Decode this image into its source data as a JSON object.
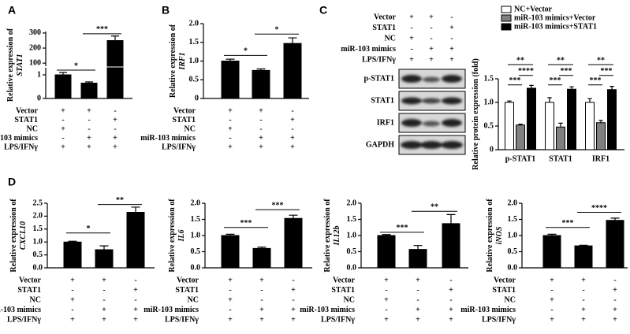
{
  "chart_data": [
    {
      "type": "bar",
      "panel": "A",
      "ylabel": "Relative expression of",
      "gene": "STAT1",
      "color": "#000000",
      "values": [
        1.0,
        0.65,
        250
      ],
      "errors": [
        0.1,
        0.05,
        30
      ],
      "segments": [
        {
          "ylim": [
            0,
            1.3
          ],
          "yticks": [
            0,
            1
          ]
        },
        {
          "ylim": [
            80,
            310
          ],
          "yticks": [
            100,
            200,
            300
          ]
        }
      ],
      "annotations": [
        {
          "label": "*",
          "y": 1.2
        },
        {
          "label": "***",
          "y": 295
        }
      ],
      "conditions": [
        {
          "label": "Vector",
          "marks": [
            "+",
            "+",
            "-"
          ]
        },
        {
          "label": "STAT1",
          "marks": [
            "-",
            "-",
            "+"
          ]
        },
        {
          "label": "NC",
          "marks": [
            "+",
            "-",
            "-"
          ]
        },
        {
          "label": "miR-103 mimics",
          "marks": [
            "-",
            "+",
            "+"
          ]
        },
        {
          "label": "LPS/IFNγ",
          "marks": [
            "+",
            "+",
            "+"
          ]
        }
      ]
    },
    {
      "type": "bar",
      "panel": "B",
      "ylabel": "Relative expression of",
      "gene": "IRF1",
      "color": "#000000",
      "values": [
        1.0,
        0.75,
        1.47
      ],
      "errors": [
        0.05,
        0.04,
        0.15
      ],
      "ylim": [
        0,
        2.0
      ],
      "yticks": [
        0,
        0.5,
        {
          "value": 1,
          "label": "1.0"
        },
        1.5,
        {
          "value": 2,
          "label": "2.0"
        }
      ],
      "annotations": [
        {
          "label": "*",
          "y": 1.15
        },
        {
          "label": "*",
          "y": 1.72
        }
      ],
      "conditions": [
        {
          "label": "Vector",
          "marks": [
            "+",
            "+",
            "-"
          ]
        },
        {
          "label": "STAT1",
          "marks": [
            "-",
            "-",
            "+"
          ]
        },
        {
          "label": "NC",
          "marks": [
            "+",
            "-",
            "-"
          ]
        },
        {
          "label": "miR-103 mimics",
          "marks": [
            "-",
            "+",
            "+"
          ]
        },
        {
          "label": "LPS/IFNγ",
          "marks": [
            "+",
            "+",
            "+"
          ]
        }
      ]
    },
    {
      "type": "grouped_bar",
      "panel": "C",
      "ylabel": "Relative protein expression (fold)",
      "categories": [
        "p-STAT1",
        "STAT1",
        "IRF1"
      ],
      "series": [
        {
          "name": "NC+Vector",
          "color": "#ffffff",
          "values": [
            1.0,
            1.0,
            1.0
          ],
          "errors": [
            0.03,
            0.1,
            0.08
          ]
        },
        {
          "name": "miR-103 mimics+Vector",
          "color": "#808080",
          "values": [
            0.52,
            0.48,
            0.57
          ],
          "errors": [
            0.02,
            0.08,
            0.05
          ]
        },
        {
          "name": "miR-103 mimics+STAT1",
          "color": "#000000",
          "values": [
            1.3,
            1.28,
            1.27
          ],
          "errors": [
            0.06,
            0.05,
            0.07
          ]
        }
      ],
      "ylim": [
        0,
        1.5
      ],
      "yticks": [
        0,
        0.5,
        {
          "value": 1,
          "label": "1.0"
        },
        1.5
      ],
      "annotations": [
        [
          {
            "label": "***",
            "y": 1.37
          },
          {
            "label": "****",
            "y": 1.57
          },
          {
            "label": "**",
            "y": 1.8
          }
        ],
        [
          {
            "label": "***",
            "y": 1.37
          },
          {
            "label": "***",
            "y": 1.57
          },
          {
            "label": "**",
            "y": 1.8
          }
        ],
        [
          {
            "label": "***",
            "y": 1.37
          },
          {
            "label": "***",
            "y": 1.57
          },
          {
            "label": "**",
            "y": 1.8
          }
        ]
      ],
      "blot_rows": [
        "p-STAT1",
        "STAT1",
        "IRF1",
        "GAPDH"
      ],
      "conditions": [
        {
          "label": "Vector",
          "marks": [
            "+",
            "+",
            "-"
          ]
        },
        {
          "label": "STAT1",
          "marks": [
            "-",
            "-",
            "+"
          ]
        },
        {
          "label": "NC",
          "marks": [
            "+",
            "-",
            "-"
          ]
        },
        {
          "label": "miR-103 mimics",
          "marks": [
            "-",
            "+",
            "+"
          ]
        },
        {
          "label": "LPS/IFNγ",
          "marks": [
            "+",
            "+",
            "+"
          ]
        }
      ]
    },
    {
      "type": "bar",
      "panel": "D",
      "ylabel": "Relative expression of",
      "gene": "CXCL10",
      "color": "#000000",
      "values": [
        1.0,
        0.7,
        2.15
      ],
      "errors": [
        0.03,
        0.15,
        0.2
      ],
      "ylim": [
        0,
        2.5
      ],
      "yticks": [
        {
          "value": 0,
          "label": "0.0"
        },
        0.5,
        {
          "value": 1,
          "label": "1.0"
        },
        1.5,
        {
          "value": 2,
          "label": "2.0"
        },
        2.5
      ],
      "annotations": [
        {
          "label": "*",
          "y": 1.35
        },
        {
          "label": "**",
          "y": 2.45
        }
      ],
      "conditions": [
        {
          "label": "Vector",
          "marks": [
            "+",
            "+",
            "-"
          ]
        },
        {
          "label": "STAT1",
          "marks": [
            "-",
            "-",
            "+"
          ]
        },
        {
          "label": "NC",
          "marks": [
            "+",
            "-",
            "-"
          ]
        },
        {
          "label": "miR-103 mimics",
          "marks": [
            "-",
            "+",
            "+"
          ]
        },
        {
          "label": "LPS/IFNγ",
          "marks": [
            "+",
            "+",
            "+"
          ]
        }
      ]
    },
    {
      "type": "bar",
      "ylabel": "Relative expression of",
      "gene": "IL6",
      "color": "#000000",
      "values": [
        1.0,
        0.6,
        1.53
      ],
      "errors": [
        0.04,
        0.04,
        0.1
      ],
      "ylim": [
        0,
        2.0
      ],
      "yticks": [
        {
          "value": 0,
          "label": "0.0"
        },
        0.5,
        {
          "value": 1,
          "label": "1.0"
        },
        1.5,
        {
          "value": 2,
          "label": "2.0"
        }
      ],
      "annotations": [
        {
          "label": "***",
          "y": 1.25
        },
        {
          "label": "***",
          "y": 1.8
        }
      ],
      "conditions": [
        {
          "label": "Vector",
          "marks": [
            "+",
            "+",
            "-"
          ]
        },
        {
          "label": "STAT1",
          "marks": [
            "-",
            "-",
            "+"
          ]
        },
        {
          "label": "NC",
          "marks": [
            "+",
            "-",
            "-"
          ]
        },
        {
          "label": "miR-103 mimics",
          "marks": [
            "-",
            "+",
            "+"
          ]
        },
        {
          "label": "LPS/IFNγ",
          "marks": [
            "+",
            "+",
            "+"
          ]
        }
      ]
    },
    {
      "type": "bar",
      "ylabel": "Relative expression of",
      "gene": "IL12b",
      "color": "#000000",
      "values": [
        1.0,
        0.57,
        1.37
      ],
      "errors": [
        0.03,
        0.12,
        0.28
      ],
      "ylim": [
        0,
        2.0
      ],
      "yticks": [
        {
          "value": 0,
          "label": "0.0"
        },
        0.5,
        {
          "value": 1,
          "label": "1.0"
        },
        1.5,
        {
          "value": 2,
          "label": "2.0"
        }
      ],
      "annotations": [
        {
          "label": "***",
          "y": 1.1
        },
        {
          "label": "**",
          "y": 1.75
        }
      ],
      "conditions": [
        {
          "label": "Vector",
          "marks": [
            "+",
            "+",
            "-"
          ]
        },
        {
          "label": "STAT1",
          "marks": [
            "-",
            "-",
            "+"
          ]
        },
        {
          "label": "NC",
          "marks": [
            "+",
            "-",
            "-"
          ]
        },
        {
          "label": "miR-103 mimics",
          "marks": [
            "-",
            "+",
            "+"
          ]
        },
        {
          "label": "LPS/IFNγ",
          "marks": [
            "+",
            "+",
            "+"
          ]
        }
      ]
    },
    {
      "type": "bar",
      "ylabel": "Relative expression of",
      "gene": "iNOS",
      "color": "#000000",
      "values": [
        1.0,
        0.68,
        1.47
      ],
      "errors": [
        0.04,
        0.02,
        0.07
      ],
      "ylim": [
        0,
        2.0
      ],
      "yticks": [
        {
          "value": 0,
          "label": "0.0"
        },
        0.5,
        {
          "value": 1,
          "label": "1.0"
        },
        1.5,
        {
          "value": 2,
          "label": "2.0"
        }
      ],
      "annotations": [
        {
          "label": "***",
          "y": 1.25
        },
        {
          "label": "****",
          "y": 1.72
        }
      ],
      "conditions": [
        {
          "label": "Vector",
          "marks": [
            "+",
            "+",
            "-"
          ]
        },
        {
          "label": "STAT1",
          "marks": [
            "-",
            "-",
            "+"
          ]
        },
        {
          "label": "NC",
          "marks": [
            "+",
            "-",
            "-"
          ]
        },
        {
          "label": "miR-103 mimics",
          "marks": [
            "-",
            "+",
            "+"
          ]
        },
        {
          "label": "LPS/IFNγ",
          "marks": [
            "+",
            "+",
            "+"
          ]
        }
      ]
    }
  ]
}
